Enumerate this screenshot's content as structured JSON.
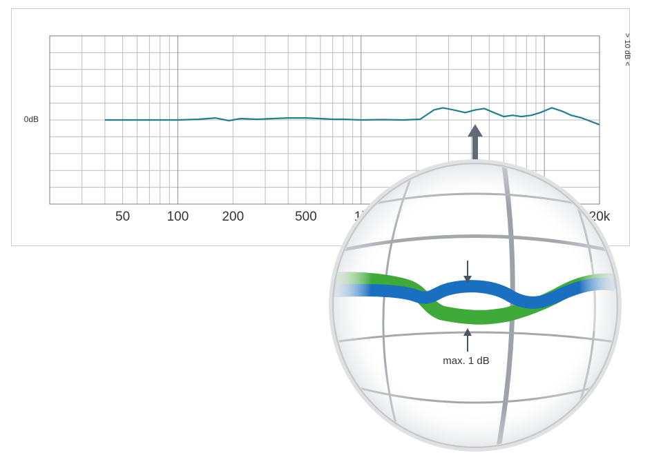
{
  "chart_data": {
    "type": "line",
    "x_scale": "log",
    "xlim": [
      20,
      20000
    ],
    "ylim": [
      -12.5,
      12.5
    ],
    "grid": true,
    "tick_labels": [
      {
        "x": 50,
        "label": "50"
      },
      {
        "x": 100,
        "label": "100"
      },
      {
        "x": 200,
        "label": "200"
      },
      {
        "x": 500,
        "label": "500"
      },
      {
        "x": 1000,
        "label": "1k"
      },
      {
        "x": 20000,
        "label": "20k"
      }
    ],
    "ylabel_zero": "0dB",
    "scale_label": "> 10 dB <",
    "series": [
      {
        "color": "#1f7f8a",
        "x": [
          40,
          60,
          100,
          130,
          160,
          190,
          220,
          270,
          330,
          400,
          500,
          600,
          700,
          800,
          1000,
          1300,
          1700,
          2100,
          2500,
          2800,
          3200,
          3700,
          4200,
          4700,
          5300,
          6000,
          6700,
          7500,
          8500,
          9500,
          11000,
          12500,
          14000,
          16000,
          20000
        ],
        "values": [
          0,
          0,
          0,
          0.1,
          0.3,
          -0.1,
          0.2,
          0.1,
          0.2,
          0.3,
          0.3,
          0.2,
          0.1,
          0.1,
          0,
          0.05,
          0,
          0.1,
          1.5,
          1.8,
          1.5,
          1.1,
          1.5,
          1.7,
          1.1,
          0.5,
          0.7,
          0.5,
          0.7,
          1.1,
          1.8,
          1.3,
          0.7,
          0.3,
          -0.7
        ]
      }
    ],
    "annotation": "max. 1 dB"
  }
}
